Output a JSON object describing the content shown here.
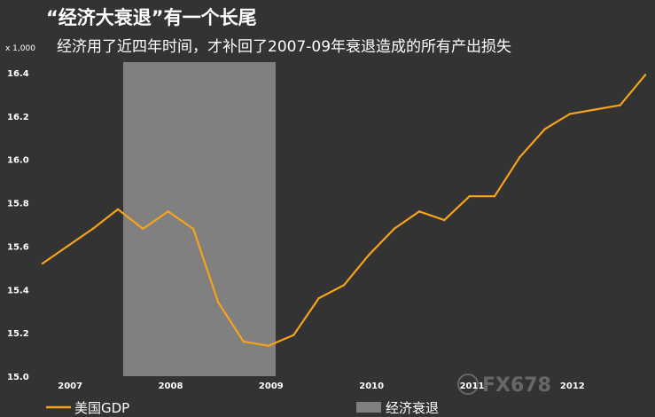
{
  "header": {
    "title": "“经济大衰退”有一个长尾",
    "subtitle": "经济用了近四年时间，才补回了2007-09年衰退造成的所有产出损失",
    "unit": "x 1,000"
  },
  "watermark": {
    "text": "FX678",
    "icon": "globe-logo-icon"
  },
  "colors": {
    "background": "#333333",
    "line": "#f7a21b",
    "recession": "#808080",
    "text": "#ffffff"
  },
  "chart_data": {
    "type": "line",
    "ylim": [
      15.0,
      16.4
    ],
    "yticks": [
      "15.0",
      "15.2",
      "15.4",
      "15.6",
      "15.8",
      "16.0",
      "16.2",
      "16.4"
    ],
    "xticks": [
      "2007",
      "2008",
      "2009",
      "2010",
      "2011",
      "2012"
    ],
    "series": [
      {
        "name": "美国GDP",
        "quarters": [
          "2007Q1",
          "2007Q2",
          "2007Q3",
          "2007Q4",
          "2008Q1",
          "2008Q2",
          "2008Q3",
          "2008Q4",
          "2009Q1",
          "2009Q2",
          "2009Q3",
          "2009Q4",
          "2010Q1",
          "2010Q2",
          "2010Q3",
          "2010Q4",
          "2011Q1",
          "2011Q2",
          "2011Q3",
          "2011Q4",
          "2012Q1",
          "2012Q2",
          "2012Q3",
          "2012Q4",
          "2013Q1"
        ],
        "values": [
          15.52,
          15.6,
          15.68,
          15.77,
          15.68,
          15.76,
          15.68,
          15.34,
          15.16,
          15.14,
          15.19,
          15.36,
          15.42,
          15.56,
          15.68,
          15.76,
          15.72,
          15.83,
          15.83,
          16.01,
          16.14,
          16.21,
          16.23,
          16.25,
          16.39
        ]
      }
    ],
    "recession": {
      "label": "经济衰退",
      "start": "2007Q4",
      "end": "2009Q2"
    }
  }
}
